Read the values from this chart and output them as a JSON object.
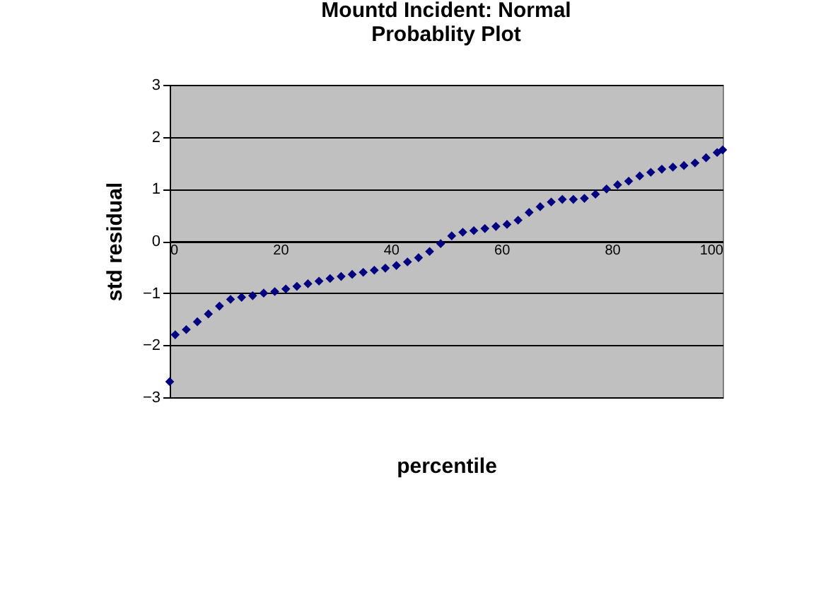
{
  "chart_data": {
    "type": "scatter",
    "title": "Mountd Incident: Normal\nProbablity Plot",
    "xlabel": "percentile",
    "ylabel": "std residual",
    "x": [
      0,
      1,
      3,
      5,
      7,
      9,
      11,
      13,
      15,
      17,
      19,
      21,
      23,
      25,
      27,
      29,
      31,
      33,
      35,
      37,
      39,
      41,
      43,
      45,
      47,
      49,
      51,
      53,
      55,
      57,
      59,
      61,
      63,
      65,
      67,
      69,
      71,
      73,
      75,
      77,
      79,
      81,
      83,
      85,
      87,
      89,
      91,
      93,
      95,
      97,
      99,
      100
    ],
    "series": [
      {
        "color": "#000080",
        "values": [
          -2.7,
          -1.8,
          -1.7,
          -1.55,
          -1.4,
          -1.25,
          -1.12,
          -1.08,
          -1.05,
          -1.0,
          -0.97,
          -0.92,
          -0.87,
          -0.82,
          -0.77,
          -0.72,
          -0.68,
          -0.64,
          -0.6,
          -0.56,
          -0.52,
          -0.47,
          -0.4,
          -0.32,
          -0.2,
          -0.05,
          0.1,
          0.17,
          0.2,
          0.24,
          0.28,
          0.32,
          0.4,
          0.55,
          0.66,
          0.75,
          0.8,
          0.8,
          0.82,
          0.9,
          1.0,
          1.08,
          1.15,
          1.25,
          1.32,
          1.38,
          1.42,
          1.45,
          1.5,
          1.6,
          1.7,
          1.75
        ]
      }
    ],
    "xlim": [
      0,
      100
    ],
    "xticks": [
      0,
      20,
      40,
      60,
      80,
      100
    ],
    "ylim": [
      -3,
      3
    ],
    "yticks": [
      -3,
      -2,
      -1,
      0,
      1,
      2,
      3
    ],
    "grid": "y",
    "marker": "diamond"
  }
}
